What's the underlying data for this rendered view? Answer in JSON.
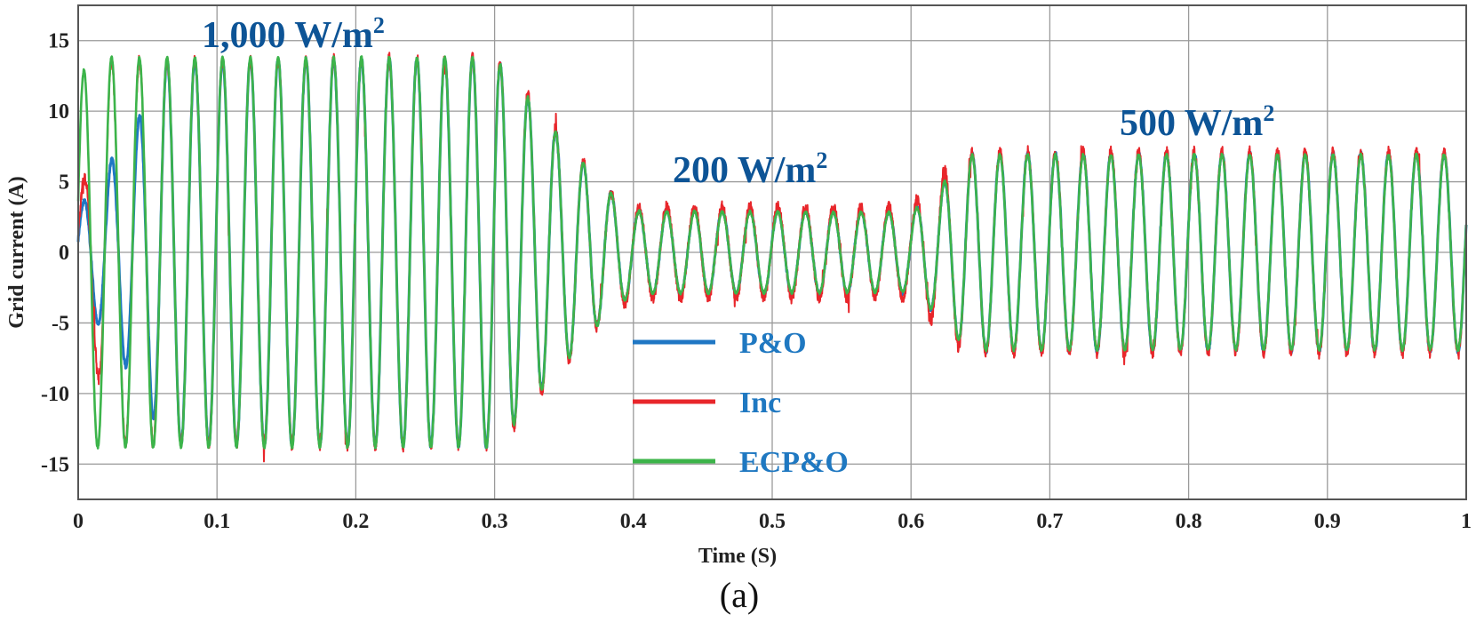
{
  "chart_data": {
    "type": "line",
    "title": "",
    "xlabel": "Time  (S)",
    "ylabel": "Grid current  (A)",
    "caption": "(a)",
    "xlim": [
      0,
      1
    ],
    "ylim": [
      -17.5,
      17.5
    ],
    "xticks": [
      "0",
      "0.1",
      "0.2",
      "0.3",
      "0.4",
      "0.5",
      "0.6",
      "0.7",
      "0.8",
      "0.9",
      "1"
    ],
    "yticks": [
      "-15",
      "-10",
      "-5",
      "0",
      "5",
      "10",
      "15"
    ],
    "grid": true,
    "legend_placement": "center",
    "signal_frequency_hz": 50,
    "annotations": [
      {
        "text": "1,000 W/m",
        "sup": "2"
      },
      {
        "text": "200 W/m",
        "sup": "2"
      },
      {
        "text": "500 W/m",
        "sup": "2"
      }
    ],
    "series": [
      {
        "name": "P&O",
        "color": "#1f77c4",
        "envelope": [
          [
            0,
            3
          ],
          [
            0.025,
            6.7
          ],
          [
            0.045,
            9.8
          ],
          [
            0.062,
            13.6
          ],
          [
            0.3,
            13.8
          ],
          [
            0.32,
            11.5
          ],
          [
            0.34,
            9
          ],
          [
            0.36,
            6.8
          ],
          [
            0.38,
            4.5
          ],
          [
            0.4,
            3
          ],
          [
            0.6,
            2.9
          ],
          [
            0.62,
            4.5
          ],
          [
            0.64,
            7
          ],
          [
            1,
            7
          ]
        ]
      },
      {
        "name": "Inc",
        "color": "#e8262b",
        "envelope": [
          [
            0,
            4
          ],
          [
            0.012,
            7.5
          ],
          [
            0.022,
            13.5
          ],
          [
            0.3,
            13.8
          ],
          [
            0.32,
            11.8
          ],
          [
            0.34,
            9.2
          ],
          [
            0.36,
            7
          ],
          [
            0.38,
            4.5
          ],
          [
            0.4,
            3.2
          ],
          [
            0.6,
            3.2
          ],
          [
            0.62,
            5.5
          ],
          [
            0.64,
            7.1
          ],
          [
            1,
            7.1
          ]
        ]
      },
      {
        "name": "ECP&O",
        "color": "#3cb44a",
        "envelope": [
          [
            0,
            12.4
          ],
          [
            0.012,
            13.8
          ],
          [
            0.3,
            13.8
          ],
          [
            0.32,
            11.5
          ],
          [
            0.34,
            9
          ],
          [
            0.36,
            6.8
          ],
          [
            0.38,
            4.5
          ],
          [
            0.4,
            2.9
          ],
          [
            0.6,
            2.8
          ],
          [
            0.62,
            4.5
          ],
          [
            0.64,
            6.9
          ],
          [
            1,
            6.9
          ]
        ]
      }
    ]
  }
}
